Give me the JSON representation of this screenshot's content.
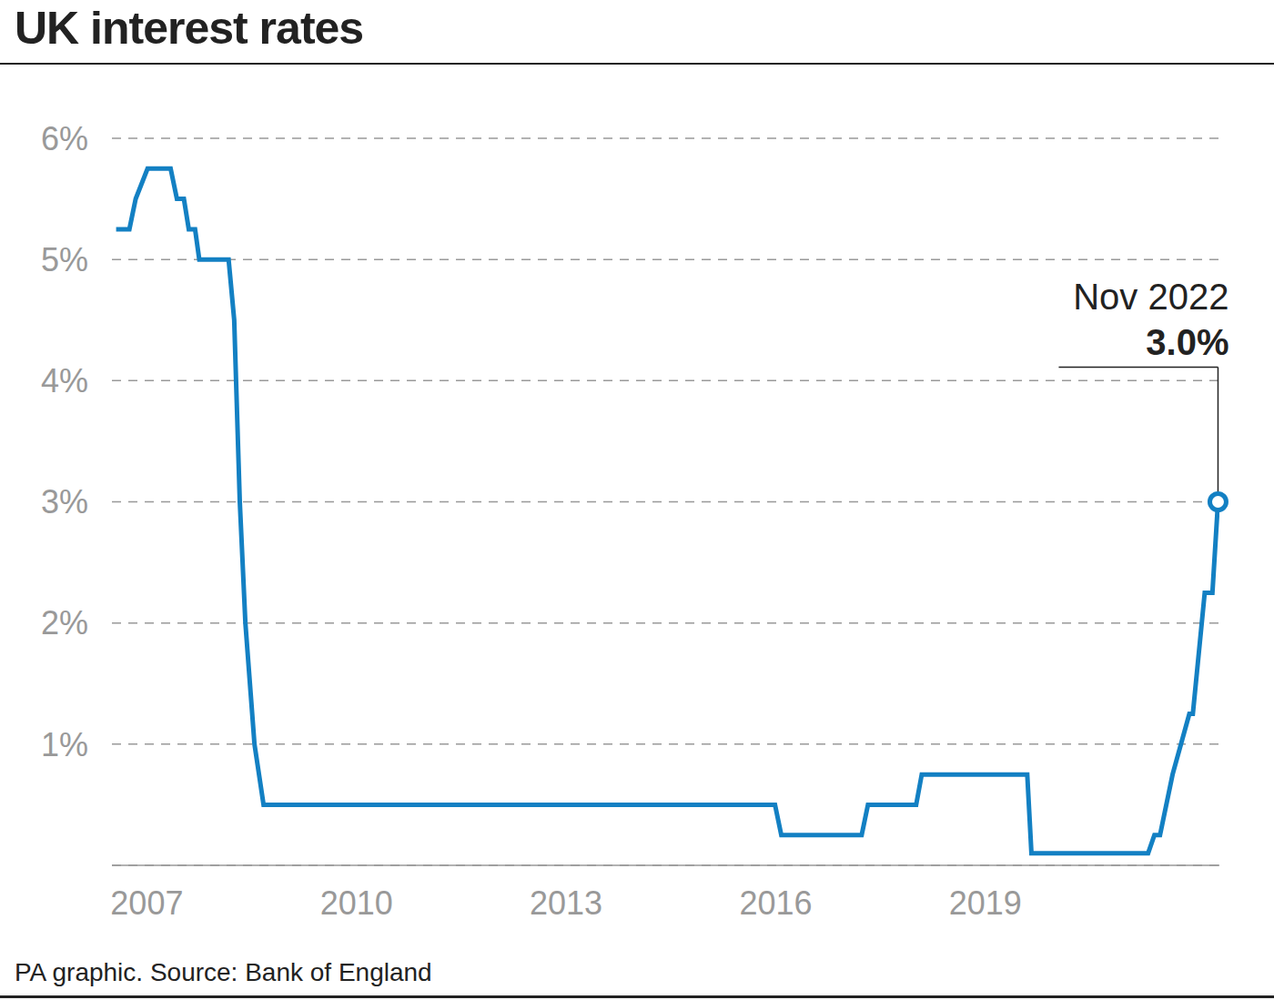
{
  "chart_data": {
    "type": "line",
    "title": "UK interest rates",
    "subtitle": "PA graphic. Source: Bank of England",
    "x": [
      2006.56,
      2006.75,
      2006.84,
      2007.01,
      2007.34,
      2007.43,
      2007.53,
      2007.6,
      2007.69,
      2007.75,
      2008.17,
      2008.25,
      2008.33,
      2008.41,
      2008.54,
      2008.67,
      2015.99,
      2016.08,
      2017.23,
      2017.32,
      2018.01,
      2018.09,
      2019.6,
      2019.66,
      2021.33,
      2021.42,
      2021.5,
      2021.68,
      2021.92,
      2021.97,
      2022.14,
      2022.25,
      2022.33
    ],
    "values": [
      5.25,
      5.25,
      5.5,
      5.75,
      5.75,
      5.5,
      5.5,
      5.25,
      5.25,
      5.0,
      5.0,
      4.5,
      3.0,
      2.0,
      1.0,
      0.5,
      0.5,
      0.25,
      0.25,
      0.5,
      0.5,
      0.75,
      0.75,
      0.1,
      0.1,
      0.25,
      0.25,
      0.75,
      1.25,
      1.25,
      2.25,
      2.25,
      3.0
    ],
    "color": "#1380c3",
    "xlim": [
      2006.5,
      2022.35
    ],
    "xticks": [
      2007,
      2010,
      2013,
      2016,
      2019
    ],
    "ylim": [
      0,
      6
    ],
    "yticks": [
      {
        "value": 1,
        "label": "1%"
      },
      {
        "value": 2,
        "label": "2%"
      },
      {
        "value": 3,
        "label": "3%"
      },
      {
        "value": 4,
        "label": "4%"
      },
      {
        "value": 5,
        "label": "5%"
      },
      {
        "value": 6,
        "label": "6%"
      }
    ],
    "grid": true,
    "annotations": [
      {
        "x": 2022.33,
        "y": 3.0,
        "text": "Nov 2022",
        "label": "3.0%"
      }
    ]
  }
}
